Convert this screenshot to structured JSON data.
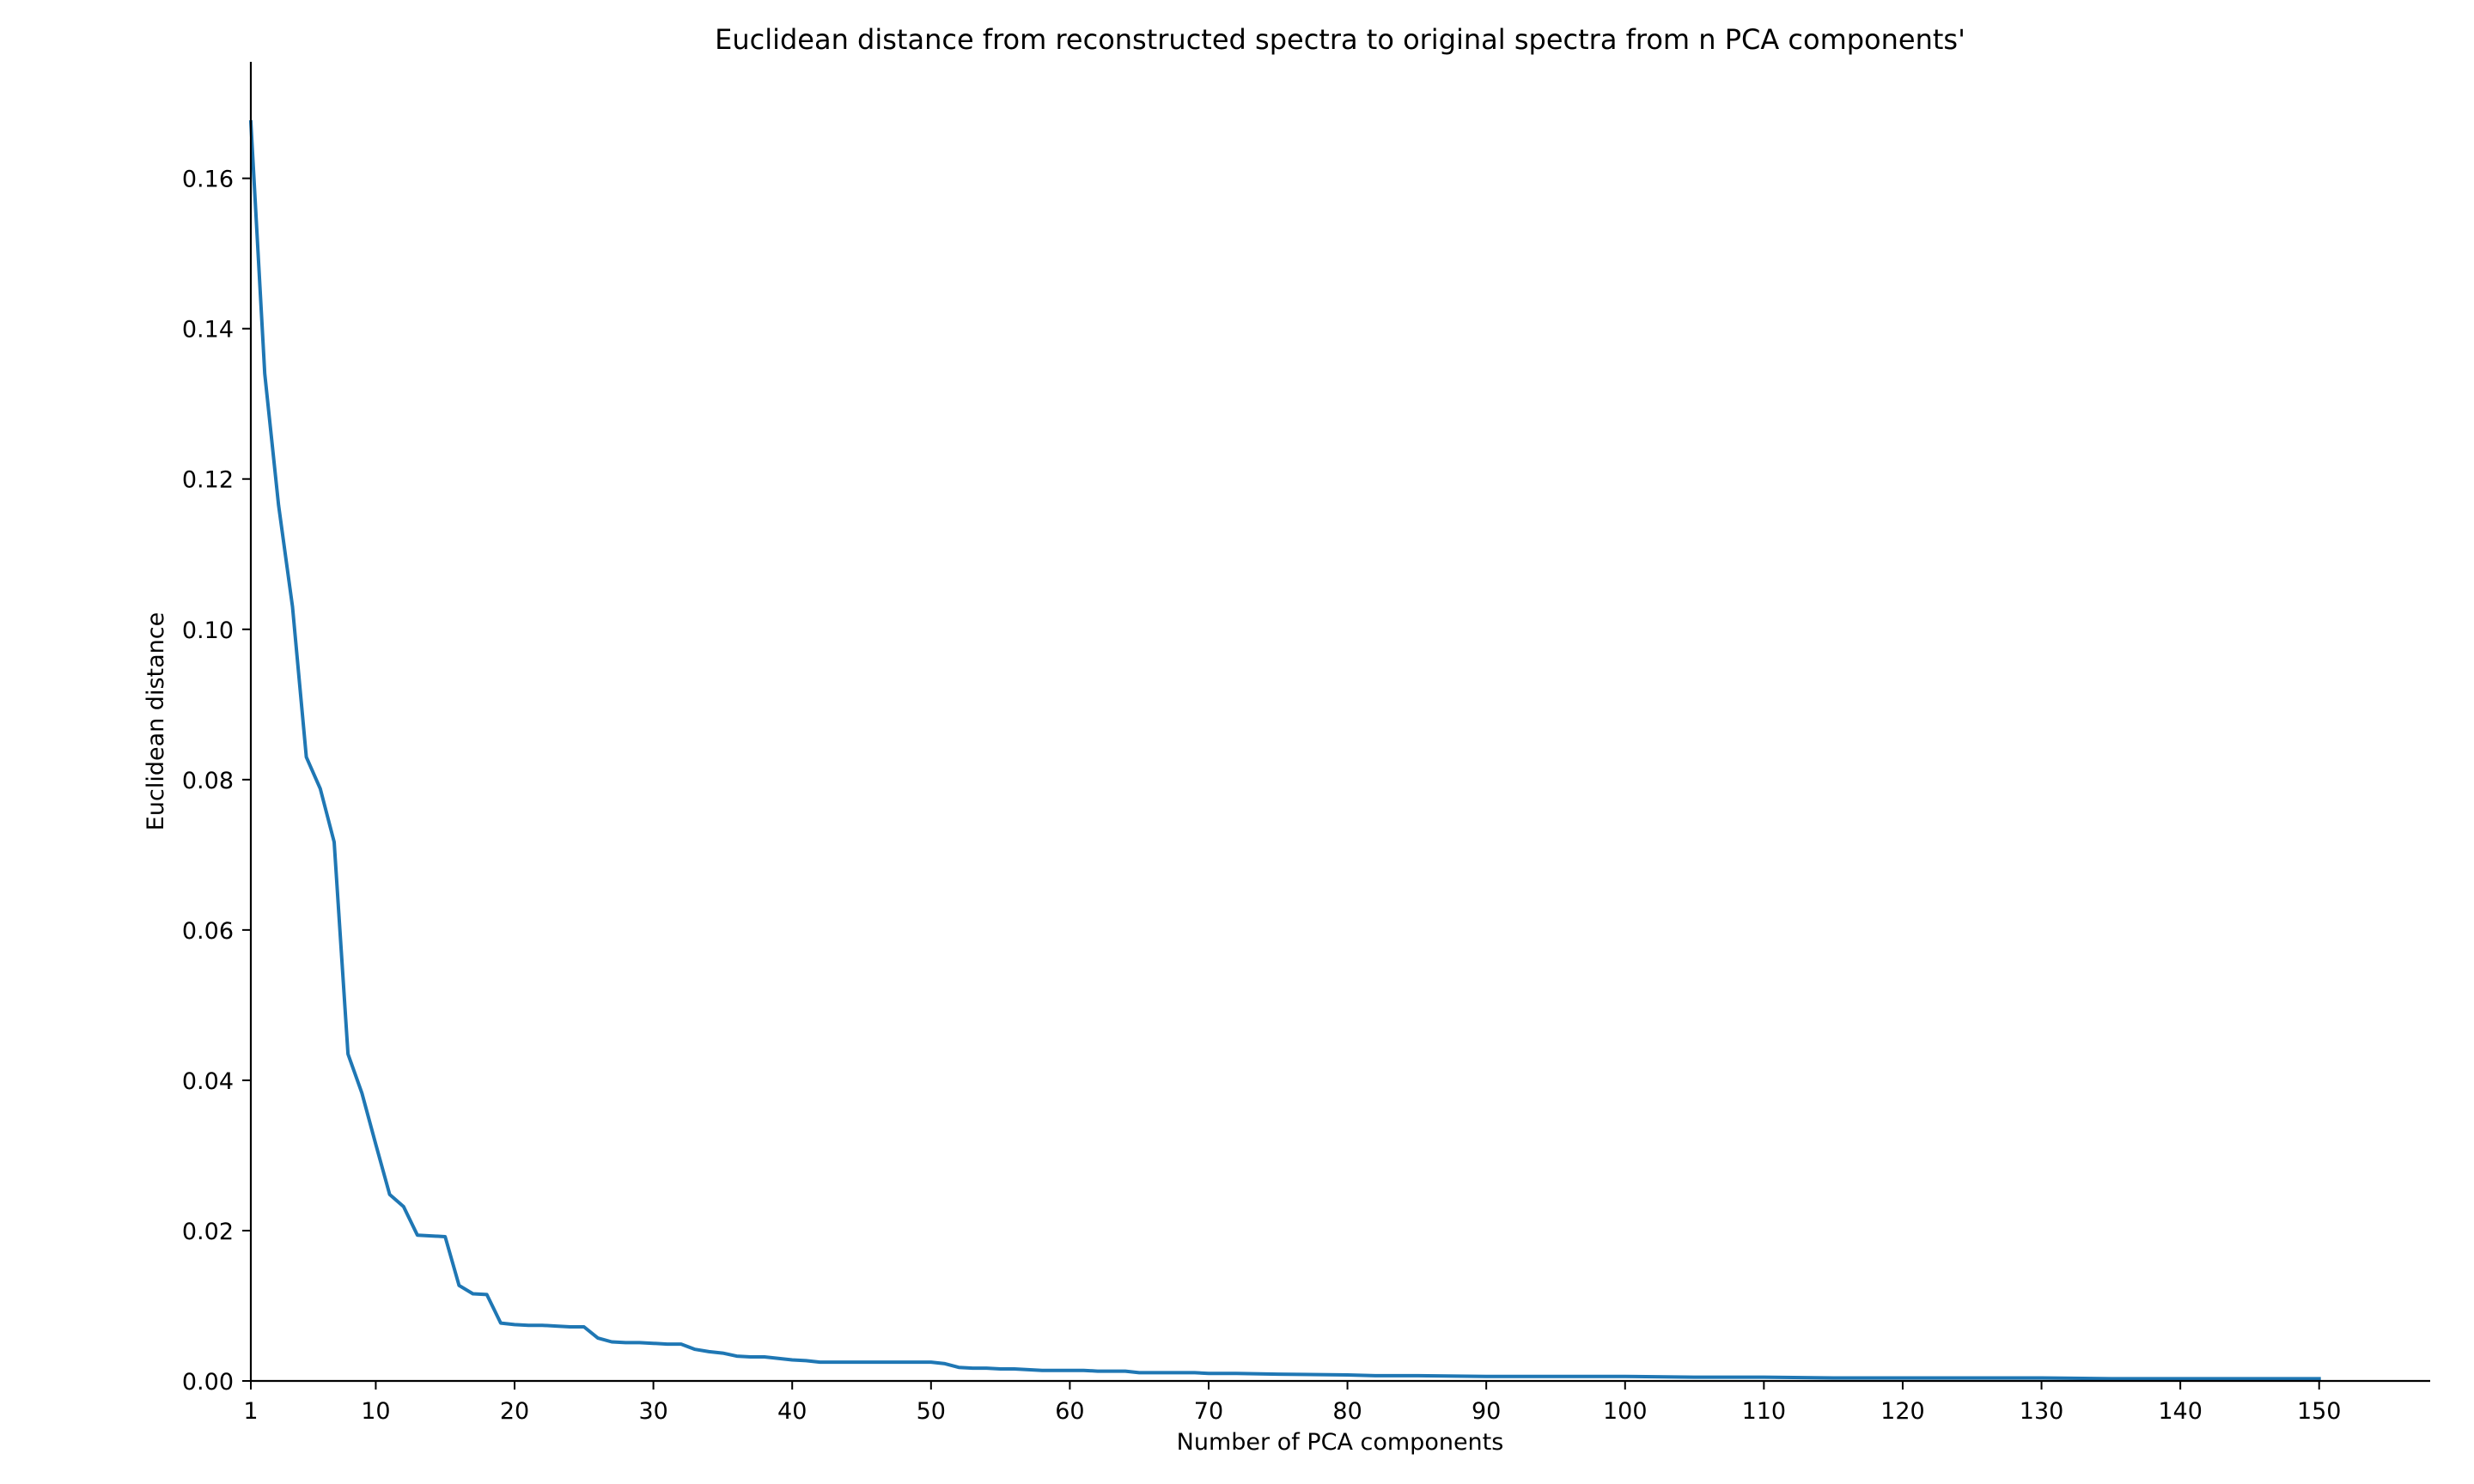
{
  "chart_data": {
    "type": "line",
    "title": "Euclidean distance from reconstructed spectra to original spectra from n PCA components'",
    "xlabel": "Number of PCA components",
    "ylabel": "Euclidean distance",
    "xlim": [
      1,
      158
    ],
    "ylim": [
      0,
      0.1755
    ],
    "x_ticks": [
      1,
      10,
      20,
      30,
      40,
      50,
      60,
      70,
      80,
      90,
      100,
      110,
      120,
      130,
      140,
      150
    ],
    "y_ticks": [
      0.0,
      0.02,
      0.04,
      0.06,
      0.08,
      0.1,
      0.12,
      0.14,
      0.16
    ],
    "y_tick_labels": [
      "0.00",
      "0.02",
      "0.04",
      "0.06",
      "0.08",
      "0.10",
      "0.12",
      "0.14",
      "0.16"
    ],
    "grid": false,
    "line_color": "#1f77b4",
    "series": [
      {
        "name": "Euclidean distance",
        "x": [
          1,
          2,
          3,
          4,
          5,
          6,
          7,
          8,
          9,
          10,
          11,
          12,
          13,
          14,
          15,
          16,
          17,
          18,
          19,
          20,
          21,
          22,
          23,
          24,
          25,
          26,
          27,
          28,
          29,
          30,
          31,
          32,
          33,
          34,
          35,
          36,
          37,
          38,
          39,
          40,
          41,
          42,
          43,
          44,
          45,
          46,
          47,
          48,
          49,
          50,
          51,
          52,
          53,
          54,
          55,
          56,
          57,
          58,
          59,
          60,
          61,
          62,
          63,
          64,
          65,
          66,
          67,
          68,
          69,
          70,
          72,
          75,
          80,
          82,
          85,
          90,
          95,
          100,
          105,
          110,
          115,
          120,
          125,
          130,
          135,
          140,
          145,
          150
        ],
        "values": [
          0.1675,
          0.134,
          0.1165,
          0.103,
          0.083,
          0.0788,
          0.0717,
          0.0435,
          0.0383,
          0.0315,
          0.0248,
          0.0232,
          0.0194,
          0.0193,
          0.0192,
          0.0127,
          0.0116,
          0.0115,
          0.0077,
          0.0075,
          0.0074,
          0.0074,
          0.0073,
          0.0072,
          0.0072,
          0.0057,
          0.0052,
          0.0051,
          0.0051,
          0.005,
          0.0049,
          0.0049,
          0.0042,
          0.0039,
          0.0037,
          0.0033,
          0.0032,
          0.0032,
          0.003,
          0.0028,
          0.0027,
          0.0025,
          0.0025,
          0.0025,
          0.0025,
          0.0025,
          0.0025,
          0.0025,
          0.0025,
          0.0025,
          0.0023,
          0.0018,
          0.0017,
          0.0017,
          0.0016,
          0.0016,
          0.0015,
          0.0014,
          0.0014,
          0.0014,
          0.0014,
          0.0013,
          0.0013,
          0.0013,
          0.0011,
          0.0011,
          0.0011,
          0.0011,
          0.0011,
          0.001,
          0.001,
          0.0009,
          0.0008,
          0.0007,
          0.0007,
          0.0006,
          0.0006,
          0.0006,
          0.0005,
          0.0005,
          0.0004,
          0.0004,
          0.0004,
          0.0004,
          0.0003,
          0.0003,
          0.0003,
          0.0003
        ]
      }
    ]
  }
}
